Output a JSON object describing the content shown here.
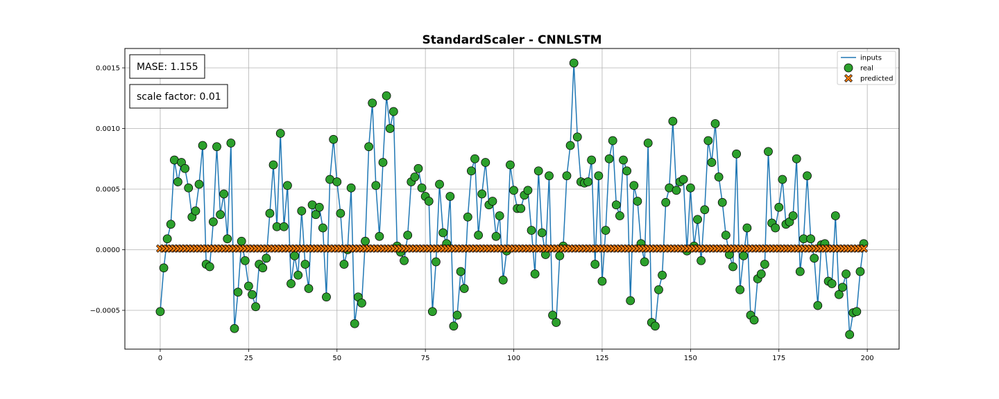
{
  "chart_data": {
    "type": "line",
    "title": "StandardScaler - CNNLSTM",
    "xlabel": "",
    "ylabel": "",
    "xlim": [
      -10,
      209
    ],
    "ylim": [
      -0.00082,
      0.00166
    ],
    "x_ticks": [
      0,
      25,
      50,
      75,
      100,
      125,
      150,
      175,
      200
    ],
    "x_tick_labels": [
      "0",
      "25",
      "50",
      "75",
      "100",
      "125",
      "150",
      "175",
      "200"
    ],
    "y_ticks": [
      -0.0005,
      0.0,
      0.0005,
      0.001,
      0.0015
    ],
    "y_tick_labels": [
      "−0.0005",
      "0.0000",
      "0.0005",
      "0.0010",
      "0.0015"
    ],
    "grid": true,
    "legend_position": "top-right",
    "annotations": [
      "MASE: 1.155",
      "scale factor: 0.01"
    ],
    "series": [
      {
        "name": "inputs",
        "style": "line",
        "color": "#1f77b4",
        "values": [
          -0.00051,
          -0.00015,
          9e-05,
          0.00021,
          0.00074,
          0.00056,
          0.00072,
          0.00067,
          0.00051,
          0.00027,
          0.00032,
          0.00054,
          0.00086,
          -0.00012,
          -0.00014,
          0.00023,
          0.00085,
          0.00029,
          0.00046,
          9e-05,
          0.00088,
          -0.00065,
          -0.00035,
          7e-05,
          -9e-05,
          -0.0003,
          -0.00037,
          -0.00047,
          -0.00012,
          -0.00015,
          -7e-05,
          0.0003,
          0.0007,
          0.00019,
          0.00096,
          0.00019,
          0.00053,
          -0.00028,
          -5e-05,
          -0.00021,
          0.00032,
          -0.00012,
          -0.00032,
          0.00037,
          0.00029,
          0.00035,
          0.00018,
          -0.00039,
          0.00058,
          0.00091,
          0.00056,
          0.0003,
          -0.00012,
          0.0,
          0.00051,
          -0.00061,
          -0.00039,
          -0.00044,
          7e-05,
          0.00085,
          0.00121,
          0.00053,
          0.00011,
          0.00072,
          0.00127,
          0.001,
          0.00114,
          3e-05,
          -2e-05,
          -9e-05,
          0.00012,
          0.00056,
          0.0006,
          0.00067,
          0.00051,
          0.00044,
          0.0004,
          -0.00051,
          -0.0001,
          0.00054,
          0.00014,
          5e-05,
          0.00044,
          -0.00063,
          -0.00054,
          -0.00018,
          -0.00032,
          0.00027,
          0.00065,
          0.00075,
          0.00012,
          0.00046,
          0.00072,
          0.00037,
          0.0004,
          0.00011,
          0.00028,
          -0.00025,
          -1e-05,
          0.0007,
          0.00049,
          0.00034,
          0.00034,
          0.00045,
          0.00049,
          0.00016,
          -0.0002,
          0.00065,
          0.00014,
          -4e-05,
          0.00061,
          -0.00054,
          -0.0006,
          -5e-05,
          3e-05,
          0.00061,
          0.00086,
          0.00154,
          0.00093,
          0.00056,
          0.00055,
          0.00056,
          0.00074,
          -0.00012,
          0.00061,
          -0.00026,
          0.00016,
          0.00075,
          0.0009,
          0.00037,
          0.00028,
          0.00074,
          0.00065,
          -0.00042,
          0.00053,
          0.0004,
          5e-05,
          -0.0001,
          0.00088,
          -0.0006,
          -0.00063,
          -0.00033,
          -0.00021,
          0.00039,
          0.00051,
          0.00106,
          0.00049,
          0.00056,
          0.00058,
          -1e-05,
          0.00051,
          3e-05,
          0.00025,
          -9e-05,
          0.00033,
          0.0009,
          0.00072,
          0.00104,
          0.0006,
          0.00039,
          0.00012,
          -4e-05,
          -0.00014,
          0.00079,
          -0.00033,
          -5e-05,
          0.00018,
          -0.00054,
          -0.00058,
          -0.00024,
          -0.0002,
          -0.00012,
          0.00081,
          0.00022,
          0.00018,
          0.00035,
          0.00058,
          0.00021,
          0.00023,
          0.00028,
          0.00075,
          -0.00018,
          9e-05,
          0.00061,
          9e-05,
          -7e-05,
          -0.00046,
          4e-05,
          5e-05,
          -0.00026,
          -0.00028,
          0.00028,
          -0.00037,
          -0.00031,
          -0.0002,
          -0.0007,
          -0.00052,
          -0.00051,
          -0.00018,
          5e-05
        ]
      },
      {
        "name": "real",
        "style": "marker-circle",
        "color": "#2ca02c",
        "values_same_as": "inputs"
      },
      {
        "name": "predicted",
        "style": "marker-x",
        "color": "#ff7f0e",
        "constant_value": 1e-05
      }
    ]
  }
}
